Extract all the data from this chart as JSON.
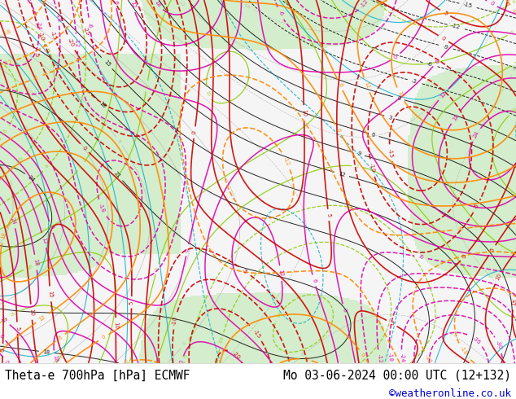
{
  "title_left": "Theta-e 700hPa [hPa] ECMWF",
  "title_right": "Mo 03-06-2024 00:00 UTC (12+132)",
  "copyright": "©weatheronline.co.uk",
  "bg_color": "#ffffff",
  "fig_width": 6.34,
  "fig_height": 4.9,
  "dpi": 100,
  "title_fontsize": 10.5,
  "copyright_color": "#0000cc",
  "copyright_fontsize": 9,
  "title_color": "#000000"
}
